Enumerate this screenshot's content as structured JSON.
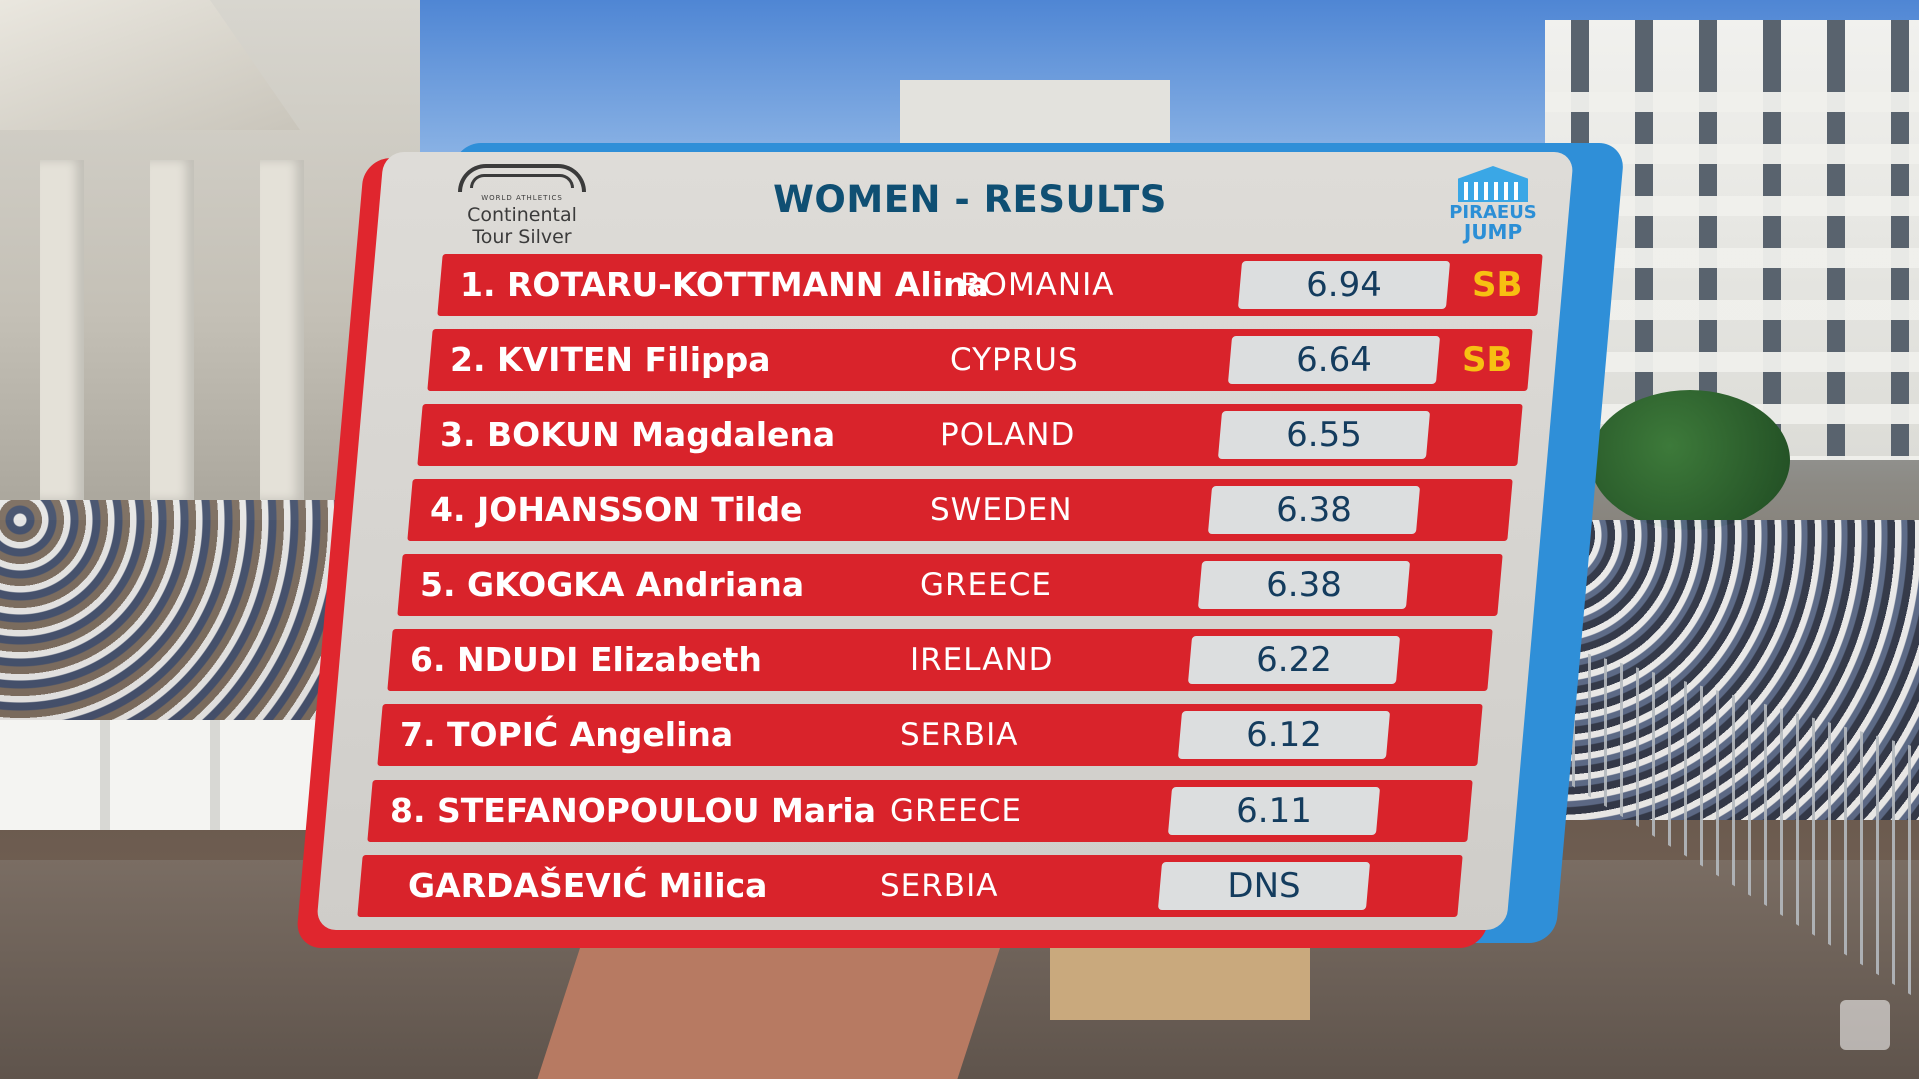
{
  "board": {
    "title": "WOMEN - RESULTS",
    "tour_logo": {
      "small_text": "WORLD ATHLETICS",
      "line1": "Continental",
      "line2": "Tour Silver"
    },
    "event_logo": {
      "line1": "PIRAEUS",
      "line2": "JUMP"
    }
  },
  "results": [
    {
      "name": "1. ROTARU-KOTTMANN Alina",
      "country": "ROMANIA",
      "mark": "6.94",
      "tag": "SB"
    },
    {
      "name": "2. KVITEN Filippa",
      "country": "CYPRUS",
      "mark": "6.64",
      "tag": "SB"
    },
    {
      "name": "3. BOKUN Magdalena",
      "country": "POLAND",
      "mark": "6.55",
      "tag": ""
    },
    {
      "name": "4. JOHANSSON Tilde",
      "country": "SWEDEN",
      "mark": "6.38",
      "tag": ""
    },
    {
      "name": "5. GKOGKA Andriana",
      "country": "GREECE",
      "mark": "6.38",
      "tag": ""
    },
    {
      "name": "6. NDUDI Elizabeth",
      "country": "IRELAND",
      "mark": "6.22",
      "tag": ""
    },
    {
      "name": "7. TOPIĆ Angelina",
      "country": "SERBIA",
      "mark": "6.12",
      "tag": ""
    },
    {
      "name": "8. STEFANOPOULOU Maria",
      "country": "GREECE",
      "mark": "6.11",
      "tag": ""
    },
    {
      "name": "GARDAŠEVIĆ Milica",
      "country": "SERBIA",
      "mark": "DNS",
      "tag": ""
    }
  ],
  "colors": {
    "row_red": "#d9232b",
    "title_blue": "#0f4f73",
    "mark_text": "#143c5e",
    "sb_yellow": "#f7c012",
    "frame_blue": "#2f8fd8",
    "frame_red": "#e0262e"
  }
}
